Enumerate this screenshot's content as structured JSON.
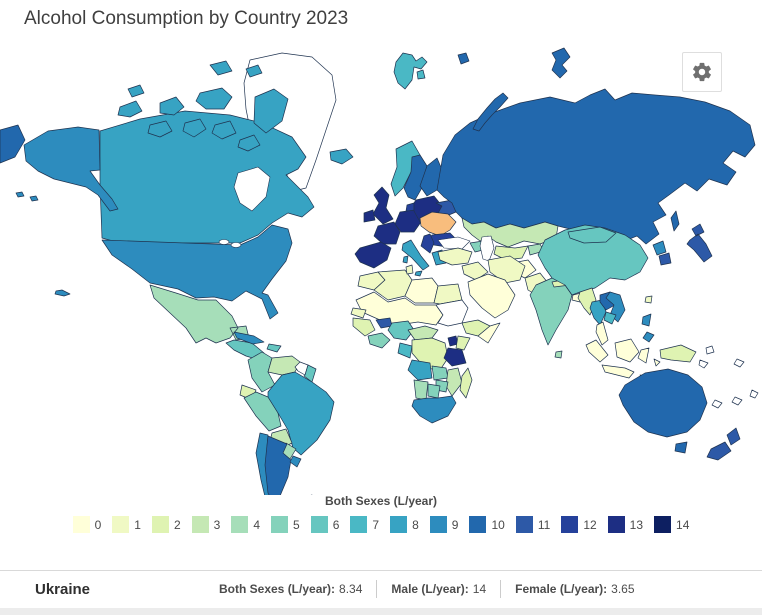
{
  "title": "Alcohol Consumption by Country 2023",
  "toolbar": {
    "settings_button": "settings"
  },
  "legend": {
    "title": "Both Sexes (L/year)"
  },
  "status_bar": {
    "country": "Ukraine",
    "stats": [
      {
        "label": "Both Sexes (L/year):",
        "value": "8.34"
      },
      {
        "label": "Male (L/year):",
        "value": "14"
      },
      {
        "label": "Female (L/year):",
        "value": "3.65"
      }
    ]
  },
  "map_style": {
    "no_data_color": "#ffffff",
    "border_color": "#1f3350",
    "ocean_color": "#ffffff"
  },
  "chart_data": {
    "type": "heatmap",
    "subtype": "choropleth-world-map",
    "title": "Alcohol Consumption by Country 2023",
    "colorbar_title": "Both Sexes (L/year)",
    "scale": {
      "min": 0,
      "max": 14,
      "stops": [
        {
          "label": "0",
          "color": "#ffffd9"
        },
        {
          "label": "1",
          "color": "#f0f9c4"
        },
        {
          "label": "2",
          "color": "#dff3b2"
        },
        {
          "label": "3",
          "color": "#c5e8b4"
        },
        {
          "label": "4",
          "color": "#a6deb9"
        },
        {
          "label": "5",
          "color": "#84d2bb"
        },
        {
          "label": "6",
          "color": "#66c6c0"
        },
        {
          "label": "7",
          "color": "#4ab8c5"
        },
        {
          "label": "8",
          "color": "#37a3c3"
        },
        {
          "label": "9",
          "color": "#2d8cbe"
        },
        {
          "label": "10",
          "color": "#2268ad"
        },
        {
          "label": "11",
          "color": "#2d59a7"
        },
        {
          "label": "12",
          "color": "#25419b"
        },
        {
          "label": "13",
          "color": "#1d2e83"
        },
        {
          "label": "14",
          "color": "#0d1f61"
        }
      ]
    },
    "selected": {
      "id": "ukraine",
      "country": "Ukraine",
      "both_sexes_l_year": 8.34,
      "male_l_year": 14,
      "female_l_year": 3.65,
      "highlight_color": "#f8bd7d"
    },
    "regions": [
      {
        "id": "greenland",
        "name": "Greenland",
        "value": "nd"
      },
      {
        "id": "canada",
        "name": "Canada",
        "value": 8
      },
      {
        "id": "alaska",
        "name": "Alaska (USA)",
        "value": 9
      },
      {
        "id": "usa",
        "name": "United States",
        "value": 9
      },
      {
        "id": "mexico",
        "name": "Mexico",
        "value": 4
      },
      {
        "id": "central-america",
        "name": "Central America",
        "value": 6
      },
      {
        "id": "cuba",
        "name": "Cuba",
        "value": 9
      },
      {
        "id": "hispaniola",
        "name": "Hispaniola",
        "value": 6
      },
      {
        "id": "colombia",
        "name": "Colombia",
        "value": 5
      },
      {
        "id": "venezuela",
        "name": "Venezuela",
        "value": 3
      },
      {
        "id": "guyana",
        "name": "Guyana",
        "value": "nd"
      },
      {
        "id": "suriname",
        "name": "Suriname",
        "value": 6
      },
      {
        "id": "ecuador",
        "name": "Ecuador",
        "value": 2
      },
      {
        "id": "peru",
        "name": "Peru",
        "value": 5
      },
      {
        "id": "brazil",
        "name": "Brazil",
        "value": 8
      },
      {
        "id": "bolivia",
        "name": "Bolivia",
        "value": 3
      },
      {
        "id": "paraguay",
        "name": "Paraguay",
        "value": 4
      },
      {
        "id": "chile",
        "name": "Chile",
        "value": 9
      },
      {
        "id": "argentina",
        "name": "Argentina",
        "value": 10
      },
      {
        "id": "uruguay",
        "name": "Uruguay",
        "value": 9
      },
      {
        "id": "falkland-islands",
        "name": "Falkland Islands",
        "value": "nd"
      },
      {
        "id": "iceland",
        "name": "Iceland",
        "value": 8
      },
      {
        "id": "united-kingdom",
        "name": "United Kingdom",
        "value": 13
      },
      {
        "id": "ireland",
        "name": "Ireland",
        "value": 13
      },
      {
        "id": "norway",
        "name": "Norway",
        "value": 7
      },
      {
        "id": "sweden",
        "name": "Sweden",
        "value": 10
      },
      {
        "id": "finland",
        "name": "Finland",
        "value": 10
      },
      {
        "id": "denmark",
        "name": "Denmark",
        "value": 12
      },
      {
        "id": "spain-portugal",
        "name": "Spain / Portugal",
        "value": 13
      },
      {
        "id": "france",
        "name": "France",
        "value": 13
      },
      {
        "id": "central-europe",
        "name": "Central Europe",
        "value": 13
      },
      {
        "id": "italy",
        "name": "Italy",
        "value": 8
      },
      {
        "id": "balkans",
        "name": "Western Balkans",
        "value": 12
      },
      {
        "id": "greece",
        "name": "Greece",
        "value": 8
      },
      {
        "id": "poland-baltics",
        "name": "Poland / Baltics",
        "value": 13
      },
      {
        "id": "belarus",
        "name": "Belarus",
        "value": 11
      },
      {
        "id": "ukraine",
        "name": "Ukraine",
        "value": 8
      },
      {
        "id": "romania-bulgaria",
        "name": "Romania / Bulgaria",
        "value": 12
      },
      {
        "id": "turkey",
        "name": "Turkey",
        "value": 1
      },
      {
        "id": "caucasus",
        "name": "Caucasus",
        "value": 5
      },
      {
        "id": "russia",
        "name": "Russia",
        "value": 10
      },
      {
        "id": "svalbard",
        "name": "Svalbard",
        "value": 7
      },
      {
        "id": "kazakhstan",
        "name": "Kazakhstan",
        "value": 3
      },
      {
        "id": "uzbekistan-turkmenistan",
        "name": "Uzbekistan / Turkmenistan",
        "value": 2
      },
      {
        "id": "kyrgyzstan-tajikistan",
        "name": "Kyrgyzstan / Tajikistan",
        "value": 4
      },
      {
        "id": "afghanistan",
        "name": "Afghanistan",
        "value": 0
      },
      {
        "id": "pakistan",
        "name": "Pakistan",
        "value": 1
      },
      {
        "id": "iran",
        "name": "Iran",
        "value": 1
      },
      {
        "id": "iraq-syria",
        "name": "Iraq / Syria",
        "value": 1
      },
      {
        "id": "saudi-arabia",
        "name": "Arabian Peninsula",
        "value": 0
      },
      {
        "id": "india",
        "name": "India",
        "value": 5
      },
      {
        "id": "sri-lanka",
        "name": "Sri Lanka",
        "value": 4
      },
      {
        "id": "nepal",
        "name": "Nepal",
        "value": 2
      },
      {
        "id": "bangladesh",
        "name": "Bangladesh",
        "value": 0
      },
      {
        "id": "china",
        "name": "China",
        "value": 6
      },
      {
        "id": "mongolia",
        "name": "Mongolia",
        "value": 6
      },
      {
        "id": "myanmar",
        "name": "Myanmar",
        "value": 2
      },
      {
        "id": "thailand",
        "name": "Thailand",
        "value": 8
      },
      {
        "id": "malaysia",
        "name": "Malaysia",
        "value": 0
      },
      {
        "id": "laos",
        "name": "Laos",
        "value": 10
      },
      {
        "id": "vietnam",
        "name": "Vietnam",
        "value": 9
      },
      {
        "id": "cambodia",
        "name": "Cambodia",
        "value": 7
      },
      {
        "id": "north-korea",
        "name": "North Korea",
        "value": 9
      },
      {
        "id": "south-korea",
        "name": "South Korea",
        "value": 11
      },
      {
        "id": "japan",
        "name": "Japan",
        "value": 11
      },
      {
        "id": "taiwan",
        "name": "Taiwan",
        "value": 1
      },
      {
        "id": "philippines",
        "name": "Philippines",
        "value": 9
      },
      {
        "id": "indonesia",
        "name": "Indonesia",
        "value": 0
      },
      {
        "id": "new-guinea",
        "name": "New Guinea",
        "value": 2
      },
      {
        "id": "pacific-islands",
        "name": "Pacific Islands",
        "value": "nd"
      },
      {
        "id": "australia",
        "name": "Australia",
        "value": 10
      },
      {
        "id": "new-zealand",
        "name": "New Zealand",
        "value": 11
      },
      {
        "id": "morocco",
        "name": "Morocco",
        "value": 1
      },
      {
        "id": "algeria",
        "name": "Algeria",
        "value": 1
      },
      {
        "id": "tunisia",
        "name": "Tunisia",
        "value": 1
      },
      {
        "id": "libya",
        "name": "Libya",
        "value": 0
      },
      {
        "id": "egypt",
        "name": "Egypt",
        "value": 1
      },
      {
        "id": "sahel",
        "name": "Sahel Belt",
        "value": 0
      },
      {
        "id": "sudan",
        "name": "Sudan",
        "value": "nd"
      },
      {
        "id": "ethiopia",
        "name": "Ethiopia",
        "value": 2
      },
      {
        "id": "somalia",
        "name": "Somalia",
        "value": 0
      },
      {
        "id": "senegal",
        "name": "Senegal",
        "value": 1
      },
      {
        "id": "guinea",
        "name": "Guinea",
        "value": 2
      },
      {
        "id": "ghana-ivory-coast",
        "name": "Ghana / Ivory Coast",
        "value": 5
      },
      {
        "id": "burkina-faso",
        "name": "Burkina Faso",
        "value": 11
      },
      {
        "id": "nigeria",
        "name": "Nigeria",
        "value": 6
      },
      {
        "id": "cameroon-car",
        "name": "Cameroon / CAR",
        "value": 3
      },
      {
        "id": "gabon-congo",
        "name": "Gabon / Congo",
        "value": 7
      },
      {
        "id": "drc",
        "name": "DR Congo",
        "value": 2
      },
      {
        "id": "uganda",
        "name": "Uganda",
        "value": 13
      },
      {
        "id": "kenya",
        "name": "Kenya",
        "value": 2
      },
      {
        "id": "tanzania",
        "name": "Tanzania",
        "value": 13
      },
      {
        "id": "angola",
        "name": "Angola",
        "value": 8
      },
      {
        "id": "zambia",
        "name": "Zambia",
        "value": 5
      },
      {
        "id": "mozambique",
        "name": "Mozambique",
        "value": 3
      },
      {
        "id": "zimbabwe",
        "name": "Zimbabwe",
        "value": 5
      },
      {
        "id": "namibia",
        "name": "Namibia",
        "value": 4
      },
      {
        "id": "botswana",
        "name": "Botswana",
        "value": 5
      },
      {
        "id": "south-africa",
        "name": "South Africa",
        "value": 9
      },
      {
        "id": "madagascar",
        "name": "Madagascar",
        "value": 2
      }
    ]
  }
}
